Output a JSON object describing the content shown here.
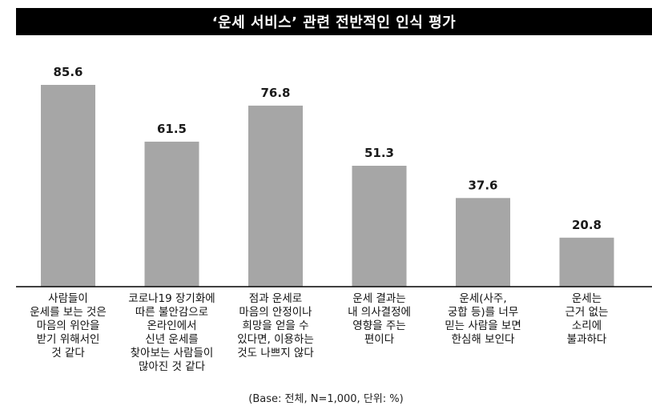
{
  "chart_data": {
    "type": "bar",
    "title": "‘운세 서비스’ 관련 전반적인 인식 평가",
    "categories": [
      "사람들이\n운세를 보는 것은\n마음의 위안을\n받기 위해서인\n것 같다",
      "코로나19 장기화에\n따른 불안감으로\n온라인에서\n신년 운세를\n찾아보는 사람들이\n많아진 것 같다",
      "점과 운세로\n마음의 안정이나\n희망을 얻을 수\n있다면, 이용하는\n것도 나쁘지 않다",
      "운세 결과는\n내 의사결정에\n영향을 주는\n편이다",
      "운세(사주,\n궁합 등)를 너무\n믿는 사람을 보면\n한심해 보인다",
      "운세는\n근거 없는\n소리에\n불과하다"
    ],
    "values": [
      85.6,
      61.5,
      76.8,
      51.3,
      37.6,
      20.8
    ],
    "value_labels": [
      "85.6",
      "61.5",
      "76.8",
      "51.3",
      "37.6",
      "20.8"
    ],
    "xlabel": "",
    "ylabel": "",
    "ylim": [
      0,
      100
    ],
    "grid": false,
    "bar_color": "#a6a6a6",
    "baseline_color": "#000000"
  },
  "footnote": "(Base: 전체, N=1,000, 단위: %)"
}
